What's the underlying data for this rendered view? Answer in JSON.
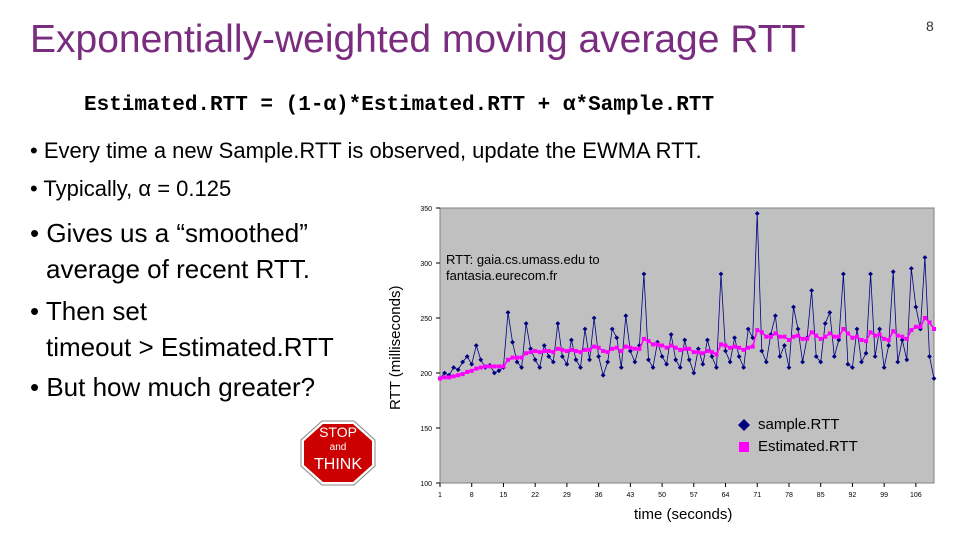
{
  "title": "Exponentially-weighted moving average RTT",
  "page_number": "8",
  "formula": "Estimated.RTT = (1-α)*Estimated.RTT + α*Sample.RTT",
  "bullets": {
    "b1": "• Every time a new Sample.RTT is observed, update the EWMA RTT.",
    "b2": "• Typically, α = 0.125",
    "b3_line1": "• Gives us a “smoothed”",
    "b3_line2": "average of recent RTT.",
    "b4_line1": "• Then set",
    "b4_line2": "timeout > Estimated.RTT",
    "b5": "• But how much greater?"
  },
  "stop_sign": {
    "line1": "STOP",
    "line2": "and",
    "line3": "THINK",
    "color": "#cc0000"
  },
  "chart_data": {
    "type": "line",
    "ylabel": "RTT (milliseconds)",
    "xlabel": "time (seconds)",
    "annotation_line1": "RTT: gaia.cs.umass.edu to",
    "annotation_line2": "fantasia.eurecom.fr",
    "ylim": [
      100,
      350
    ],
    "yticks": [
      "350",
      "300",
      "250",
      "200",
      "150",
      "100"
    ],
    "xlim": [
      1,
      110
    ],
    "xticks": [
      "1",
      "8",
      "15",
      "22",
      "29",
      "36",
      "43",
      "50",
      "57",
      "64",
      "71",
      "78",
      "85",
      "92",
      "99",
      "106"
    ],
    "xtick_values": [
      1,
      8,
      15,
      22,
      29,
      36,
      43,
      50,
      57,
      64,
      71,
      78,
      85,
      92,
      99,
      106
    ],
    "legend_position": "bottom-right",
    "grid": false,
    "plot_background": "#c0c0c0",
    "series": [
      {
        "name": "sample.RTT",
        "color": "#000080",
        "marker": "diamond",
        "x": [
          1,
          2,
          3,
          4,
          5,
          6,
          7,
          8,
          9,
          10,
          11,
          12,
          13,
          14,
          15,
          16,
          17,
          18,
          19,
          20,
          21,
          22,
          23,
          24,
          25,
          26,
          27,
          28,
          29,
          30,
          31,
          32,
          33,
          34,
          35,
          36,
          37,
          38,
          39,
          40,
          41,
          42,
          43,
          44,
          45,
          46,
          47,
          48,
          49,
          50,
          51,
          52,
          53,
          54,
          55,
          56,
          57,
          58,
          59,
          60,
          61,
          62,
          63,
          64,
          65,
          66,
          67,
          68,
          69,
          70,
          71,
          72,
          73,
          74,
          75,
          76,
          77,
          78,
          79,
          80,
          81,
          82,
          83,
          84,
          85,
          86,
          87,
          88,
          89,
          90,
          91,
          92,
          93,
          94,
          95,
          96,
          97,
          98,
          99,
          100,
          101,
          102,
          103,
          104,
          105,
          106,
          107,
          108,
          109,
          110
        ],
        "values": [
          195,
          200,
          198,
          205,
          203,
          210,
          215,
          208,
          225,
          212,
          205,
          207,
          200,
          202,
          205,
          255,
          228,
          210,
          205,
          245,
          222,
          212,
          205,
          225,
          215,
          210,
          245,
          215,
          208,
          230,
          212,
          205,
          240,
          212,
          250,
          215,
          198,
          210,
          240,
          232,
          205,
          252,
          220,
          210,
          225,
          290,
          212,
          205,
          228,
          215,
          208,
          235,
          212,
          205,
          230,
          212,
          200,
          222,
          208,
          230,
          215,
          205,
          290,
          220,
          210,
          232,
          215,
          205,
          240,
          232,
          345,
          220,
          210,
          235,
          252,
          215,
          225,
          205,
          260,
          240,
          210,
          232,
          275,
          215,
          210,
          245,
          255,
          215,
          230,
          290,
          208,
          205,
          240,
          210,
          218,
          290,
          215,
          240,
          205,
          225,
          292,
          210,
          230,
          212,
          295,
          260,
          240,
          305,
          215,
          195
        ]
      },
      {
        "name": "Estimated.RTT",
        "color": "#ff00ff",
        "marker": "square",
        "x": [
          1,
          2,
          3,
          4,
          5,
          6,
          7,
          8,
          9,
          10,
          11,
          12,
          13,
          14,
          15,
          16,
          17,
          18,
          19,
          20,
          21,
          22,
          23,
          24,
          25,
          26,
          27,
          28,
          29,
          30,
          31,
          32,
          33,
          34,
          35,
          36,
          37,
          38,
          39,
          40,
          41,
          42,
          43,
          44,
          45,
          46,
          47,
          48,
          49,
          50,
          51,
          52,
          53,
          54,
          55,
          56,
          57,
          58,
          59,
          60,
          61,
          62,
          63,
          64,
          65,
          66,
          67,
          68,
          69,
          70,
          71,
          72,
          73,
          74,
          75,
          76,
          77,
          78,
          79,
          80,
          81,
          82,
          83,
          84,
          85,
          86,
          87,
          88,
          89,
          90,
          91,
          92,
          93,
          94,
          95,
          96,
          97,
          98,
          99,
          100,
          101,
          102,
          103,
          104,
          105,
          106,
          107,
          108,
          109,
          110
        ],
        "values": [
          195,
          196,
          196,
          197,
          198,
          199,
          201,
          202,
          204,
          205,
          206,
          206,
          206,
          206,
          206,
          212,
          214,
          214,
          214,
          218,
          219,
          220,
          219,
          220,
          220,
          219,
          222,
          221,
          220,
          221,
          220,
          219,
          221,
          221,
          224,
          223,
          220,
          219,
          222,
          223,
          220,
          224,
          223,
          222,
          222,
          231,
          229,
          226,
          226,
          225,
          223,
          225,
          223,
          221,
          222,
          222,
          219,
          219,
          218,
          220,
          219,
          217,
          226,
          225,
          223,
          224,
          223,
          221,
          223,
          224,
          239,
          237,
          233,
          233,
          236,
          233,
          233,
          230,
          233,
          234,
          231,
          231,
          237,
          234,
          231,
          233,
          236,
          233,
          233,
          240,
          236,
          232,
          233,
          230,
          229,
          237,
          234,
          235,
          231,
          230,
          238,
          234,
          233,
          231,
          239,
          242,
          242,
          250,
          246,
          240
        ]
      }
    ]
  }
}
